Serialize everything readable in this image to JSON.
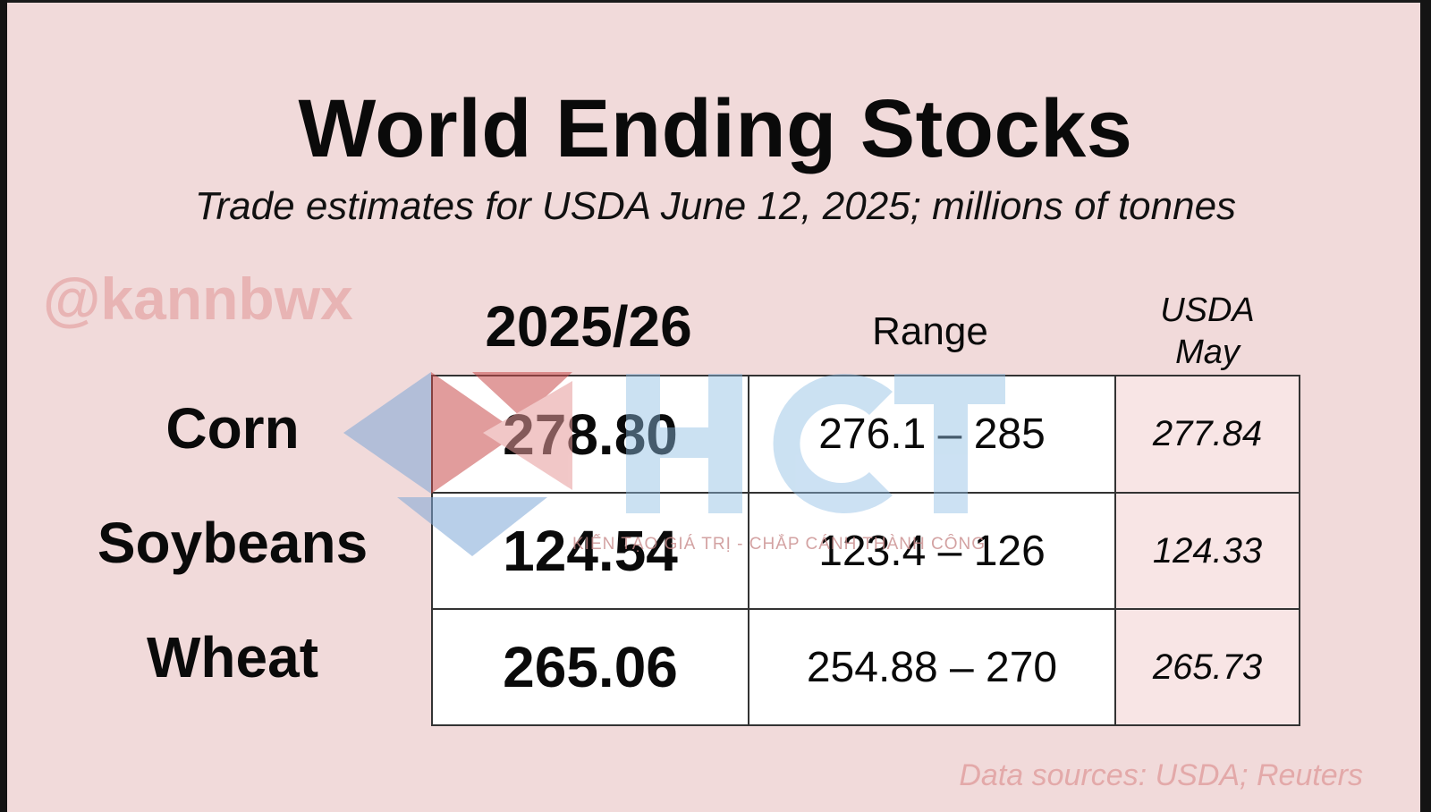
{
  "chart_data": {
    "type": "table",
    "title": "World Ending Stocks",
    "subtitle": "Trade estimates for USDA June 12, 2025; millions of tonnes",
    "columns": [
      "2025/26",
      "Range",
      "USDA May"
    ],
    "column_usda_lines": [
      "USDA",
      "May"
    ],
    "rows": [
      {
        "label": "Corn",
        "estimate": "278.80",
        "range": "276.1 – 285",
        "usda_may": "277.84"
      },
      {
        "label": "Soybeans",
        "estimate": "124.54",
        "range": "123.4 – 126",
        "usda_may": "124.33"
      },
      {
        "label": "Wheat",
        "estimate": "265.06",
        "range": "254.88 – 270",
        "usda_may": "265.73"
      }
    ],
    "source": "Data sources: USDA; Reuters"
  },
  "watermarks": {
    "handle": "@kannbwx",
    "logo_text": "HCT",
    "logo_tagline": "KIẾN TẠO GIÁ TRỊ - CHẮP CÁNH THÀNH CÔNG"
  },
  "colors": {
    "background": "#f1dada",
    "usda_column": "#f8e5e5",
    "cell": "#ffffff",
    "logo_blue": "#9fc5e6",
    "logo_red": "#d36a6a"
  }
}
